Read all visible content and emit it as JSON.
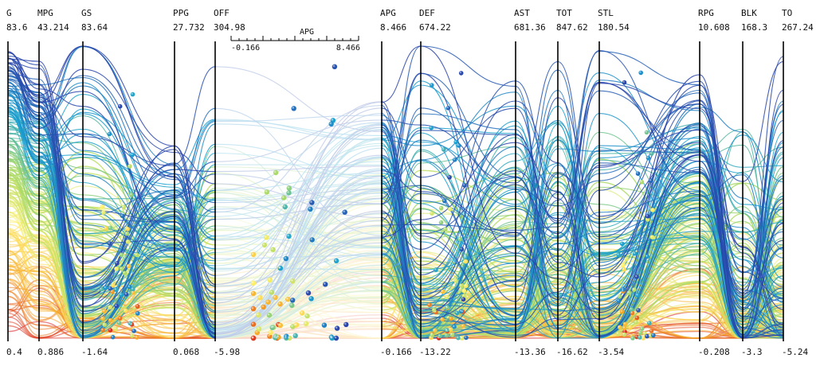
{
  "chart_data": {
    "type": "parallel-coordinates",
    "title": "",
    "dimensions": [
      {
        "name": "G",
        "max": "83.6",
        "min": "0.4"
      },
      {
        "name": "MPG",
        "max": "43.214",
        "min": "0.886"
      },
      {
        "name": "GS",
        "max": "83.64",
        "min": "-1.64"
      },
      {
        "name": "PPG",
        "max": "27.732",
        "min": "0.068"
      },
      {
        "name": "OFF",
        "max": "304.98",
        "min": "-5.98"
      },
      {
        "name": "APG",
        "max": "8.466",
        "min": "-0.166"
      },
      {
        "name": "DEF",
        "max": "674.22",
        "min": "-13.22"
      },
      {
        "name": "AST",
        "max": "681.36",
        "min": "-13.36"
      },
      {
        "name": "TOT",
        "max": "847.62",
        "min": "-16.62"
      },
      {
        "name": "STL",
        "max": "180.54",
        "min": "-3.54"
      },
      {
        "name": "RPG",
        "max": "10.608",
        "min": "-0.208"
      },
      {
        "name": "BLK",
        "max": "168.3",
        "min": "-3.3"
      },
      {
        "name": "TO",
        "max": "267.24",
        "min": "-5.24"
      }
    ],
    "inset_axis": {
      "name": "APG",
      "min": "-0.166",
      "max": "8.466"
    },
    "colormap": [
      "#d7191c",
      "#f5a623",
      "#ffef66",
      "#a6d96a",
      "#1aa0d0",
      "#2b3fa8"
    ],
    "lines_drawn": 220,
    "random_seed": 7
  }
}
